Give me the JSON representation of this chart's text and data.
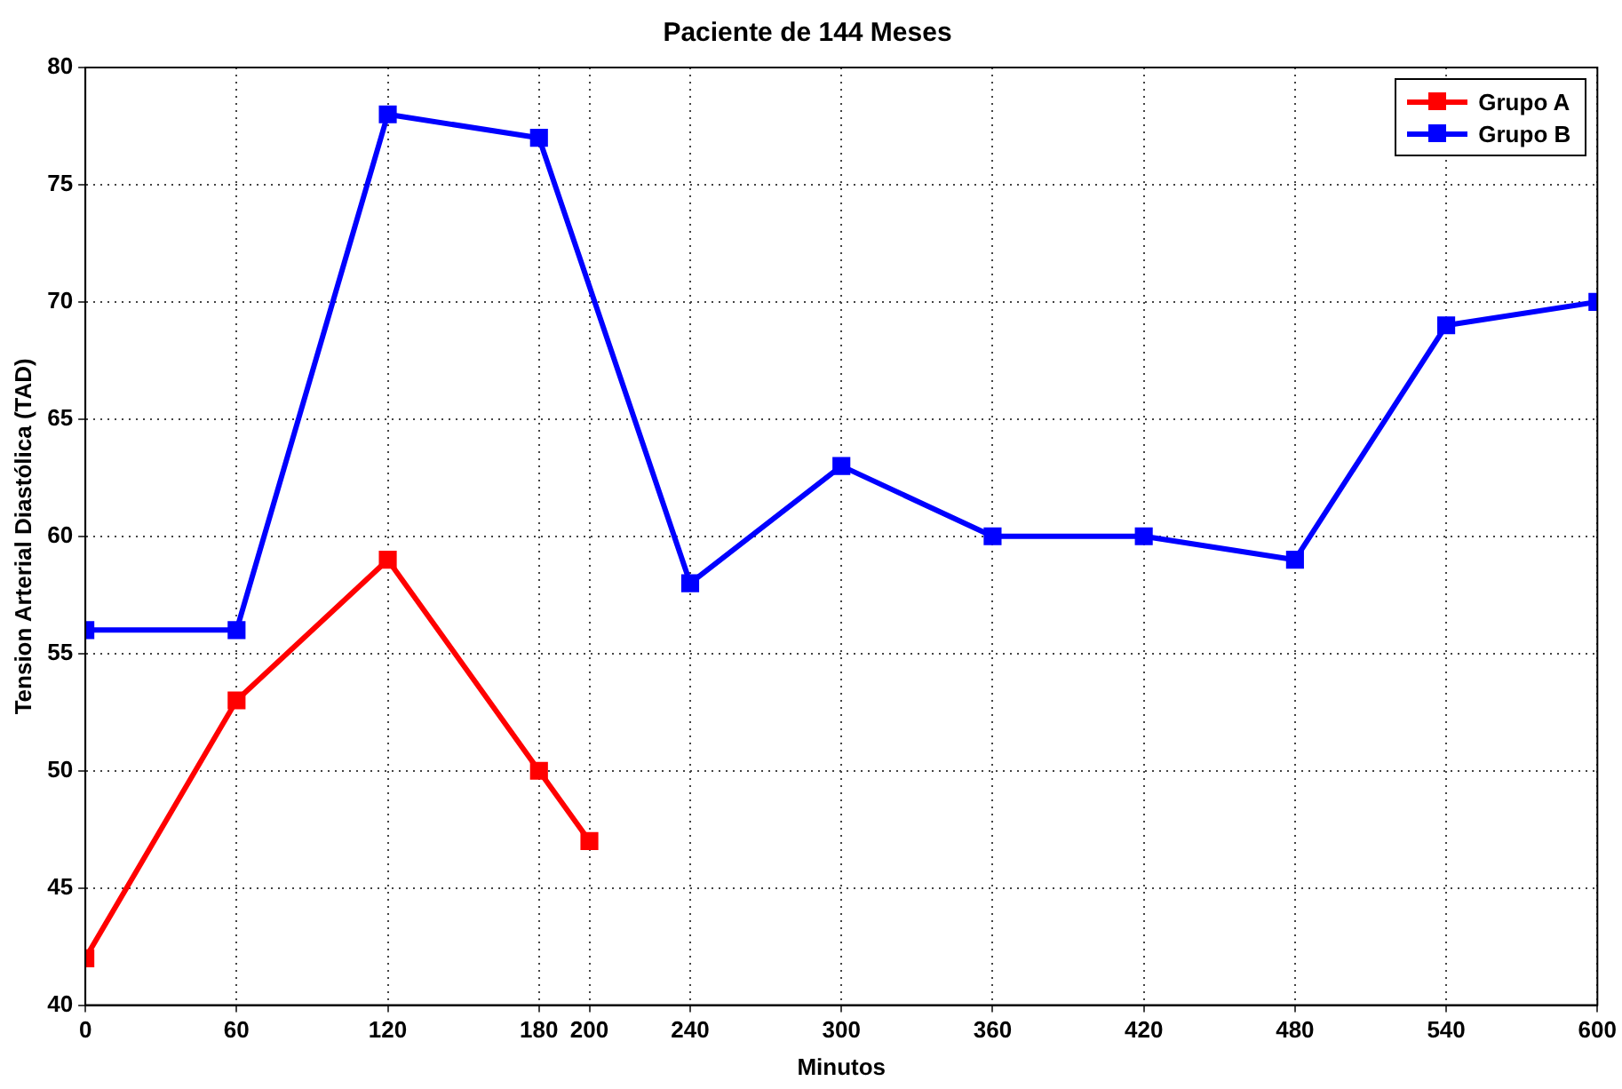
{
  "chart_data": {
    "type": "line",
    "title": "Paciente de 144 Meses",
    "xlabel": "Minutos",
    "ylabel": "Tension Arterial Diastólica (TAD)",
    "series": [
      {
        "name": "Grupo A",
        "color": "#ff0000",
        "x": [
          0,
          60,
          120,
          180,
          200
        ],
        "values": [
          42,
          53,
          59,
          50,
          47
        ]
      },
      {
        "name": "Grupo B",
        "color": "#0000ff",
        "x": [
          0,
          60,
          120,
          180,
          240,
          300,
          360,
          420,
          480,
          540,
          600
        ],
        "values": [
          56,
          56,
          78,
          77,
          58,
          63,
          60,
          60,
          59,
          69,
          70
        ]
      }
    ],
    "xlim": [
      0,
      600
    ],
    "xticks": [
      0,
      60,
      120,
      180,
      200,
      240,
      300,
      360,
      420,
      480,
      540,
      600
    ],
    "ylim": [
      40,
      80
    ],
    "yticks": [
      40,
      45,
      50,
      55,
      60,
      65,
      70,
      75,
      80
    ],
    "grid": true,
    "legend": "top right",
    "marker": "square",
    "line_style": "solid"
  }
}
